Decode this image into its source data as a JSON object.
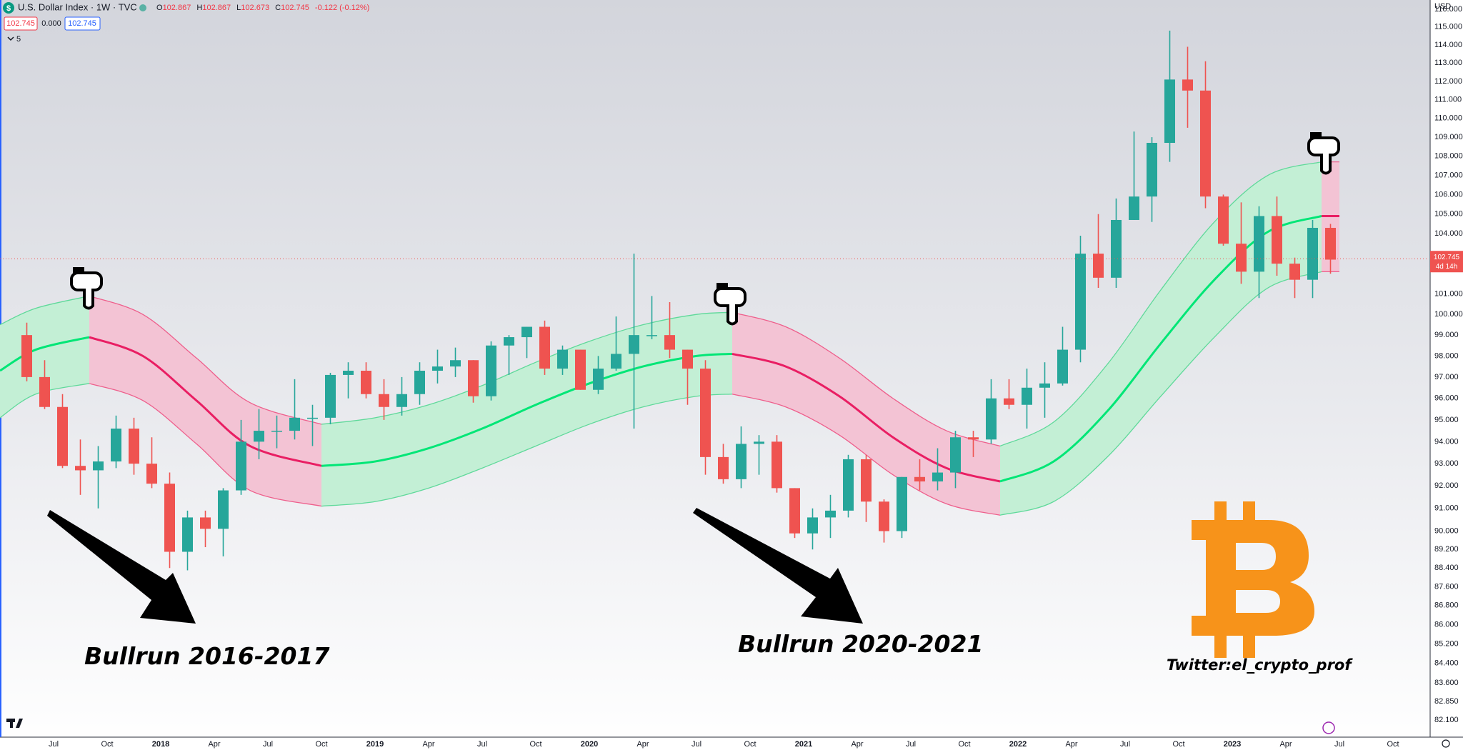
{
  "header": {
    "icon": "$",
    "symbol": "U.S. Dollar Index · 1W · TVC",
    "ohlc": [
      {
        "key": "O",
        "value": "102.867"
      },
      {
        "key": "H",
        "value": "102.867"
      },
      {
        "key": "L",
        "value": "102.673"
      },
      {
        "key": "C",
        "value": "102.745"
      }
    ],
    "change": "-0.122 (-0.12%)",
    "inputs": [
      "102.745",
      "0.000",
      "102.745"
    ],
    "indicators": "5",
    "currency": "USD"
  },
  "chart_data": {
    "type": "candlestick",
    "log_scale": true,
    "grid": false,
    "up_color": "#26a69a",
    "down_color": "#ef5350",
    "xlim": [
      "2017-04",
      "2023-12"
    ],
    "ylim": [
      81.42,
      116.52
    ],
    "x": [
      "2017-05",
      "2017-06",
      "2017-07",
      "2017-08",
      "2017-09",
      "2017-10",
      "2017-11",
      "2017-12",
      "2018-01",
      "2018-02",
      "2018-03",
      "2018-04",
      "2018-05",
      "2018-06",
      "2018-07",
      "2018-08",
      "2018-09",
      "2018-10",
      "2018-11",
      "2018-12",
      "2019-01",
      "2019-02",
      "2019-03",
      "2019-04",
      "2019-05",
      "2019-06",
      "2019-07",
      "2019-08",
      "2019-09",
      "2019-10",
      "2019-11",
      "2019-12",
      "2020-01",
      "2020-02",
      "2020-03",
      "2020-04",
      "2020-05",
      "2020-06",
      "2020-07",
      "2020-08",
      "2020-09",
      "2020-10",
      "2020-11",
      "2020-12",
      "2021-01",
      "2021-02",
      "2021-03",
      "2021-04",
      "2021-05",
      "2021-06",
      "2021-07",
      "2021-08",
      "2021-09",
      "2021-10",
      "2021-11",
      "2021-12",
      "2022-01",
      "2022-02",
      "2022-03",
      "2022-04",
      "2022-05",
      "2022-06",
      "2022-07",
      "2022-08",
      "2022-09",
      "2022-10",
      "2022-11",
      "2022-12",
      "2023-01",
      "2023-02",
      "2023-03",
      "2023-04",
      "2023-05",
      "2023-06"
    ],
    "open": [
      99.0,
      97.0,
      95.6,
      92.9,
      92.7,
      93.1,
      94.6,
      93.0,
      92.1,
      89.1,
      90.6,
      90.1,
      91.8,
      94.0,
      94.5,
      94.5,
      95.1,
      95.1,
      97.1,
      97.3,
      96.2,
      95.6,
      96.2,
      97.3,
      97.5,
      97.8,
      96.1,
      98.5,
      98.9,
      99.4,
      97.4,
      98.3,
      96.4,
      97.4,
      98.1,
      99.0,
      99.0,
      98.3,
      97.4,
      93.3,
      92.3,
      93.9,
      94.0,
      91.9,
      89.9,
      90.6,
      90.9,
      93.2,
      91.3,
      90.0,
      92.4,
      92.2,
      92.6,
      94.2,
      94.1,
      96.0,
      95.7,
      96.5,
      96.7,
      98.3,
      103.0,
      101.8,
      104.7,
      105.9,
      108.7,
      112.1,
      111.5,
      105.9,
      103.5,
      102.1,
      104.9,
      102.5,
      101.7,
      104.3
    ],
    "high": [
      99.6,
      97.8,
      96.2,
      94.1,
      93.8,
      95.2,
      95.1,
      94.2,
      92.6,
      90.9,
      90.9,
      91.9,
      95.0,
      95.5,
      95.2,
      96.9,
      95.7,
      97.2,
      97.7,
      97.7,
      96.9,
      97.0,
      97.7,
      98.3,
      98.4,
      97.8,
      98.7,
      99.0,
      99.4,
      99.7,
      98.5,
      98.3,
      98.0,
      99.9,
      103.0,
      100.9,
      100.6,
      98.3,
      97.8,
      93.9,
      94.7,
      94.3,
      94.3,
      91.9,
      91.0,
      91.6,
      93.4,
      93.4,
      91.4,
      92.4,
      93.2,
      93.7,
      94.5,
      94.5,
      96.9,
      96.9,
      97.4,
      97.7,
      99.4,
      103.9,
      105.0,
      105.8,
      109.3,
      109.0,
      114.8,
      113.9,
      113.1,
      106.0,
      105.6,
      105.4,
      105.9,
      102.8,
      104.7,
      104.5
    ],
    "low": [
      96.8,
      95.5,
      92.8,
      91.6,
      91.0,
      92.8,
      92.5,
      91.9,
      88.4,
      88.3,
      89.3,
      88.9,
      91.6,
      93.2,
      93.7,
      94.1,
      93.8,
      94.8,
      96.0,
      96.0,
      95.0,
      95.2,
      95.7,
      96.7,
      97.0,
      95.8,
      95.9,
      97.1,
      97.9,
      97.1,
      97.1,
      96.4,
      96.2,
      97.3,
      94.6,
      98.8,
      97.9,
      95.7,
      92.5,
      92.1,
      91.9,
      92.5,
      91.7,
      89.7,
      89.2,
      89.7,
      90.6,
      90.4,
      89.5,
      89.7,
      91.8,
      91.8,
      91.9,
      93.3,
      93.9,
      95.5,
      94.6,
      95.1,
      96.6,
      97.7,
      101.3,
      101.3,
      104.7,
      104.6,
      107.7,
      109.5,
      105.3,
      103.4,
      101.5,
      100.8,
      101.9,
      100.8,
      100.8,
      102.0
    ],
    "close": [
      97.0,
      95.6,
      92.9,
      92.7,
      93.1,
      94.6,
      93.0,
      92.1,
      89.1,
      90.6,
      90.1,
      91.8,
      94.0,
      94.5,
      94.5,
      95.1,
      95.1,
      97.1,
      97.3,
      96.2,
      95.6,
      96.2,
      97.3,
      97.5,
      97.8,
      96.1,
      98.5,
      98.9,
      99.4,
      97.4,
      98.3,
      96.4,
      97.4,
      98.1,
      99.0,
      99.0,
      98.3,
      97.4,
      93.3,
      92.3,
      93.9,
      94.0,
      91.9,
      89.9,
      90.6,
      90.9,
      93.2,
      91.3,
      90.0,
      92.4,
      92.2,
      92.6,
      94.2,
      94.1,
      96.0,
      95.7,
      96.5,
      96.7,
      98.3,
      103.0,
      101.8,
      104.7,
      105.9,
      108.7,
      112.1,
      111.5,
      105.9,
      103.5,
      102.1,
      104.9,
      102.5,
      101.7,
      104.3,
      102.7
    ],
    "bands": [
      {
        "color": "#00e676",
        "fill": "#c3efd5",
        "edge": "#5fd99a",
        "x": [
          "2017-04",
          "2017-06",
          "2017-09"
        ],
        "center": [
          97.3,
          98.3,
          98.9
        ],
        "upper": [
          99.5,
          100.3,
          100.9
        ],
        "lower": [
          95.1,
          96.2,
          96.7
        ]
      },
      {
        "color": "#e91e63",
        "fill": "#f3c3d4",
        "edge": "#ee5f8c",
        "x": [
          "2017-09",
          "2017-12",
          "2018-03",
          "2018-06",
          "2018-10"
        ],
        "center": [
          98.9,
          98.0,
          95.9,
          93.8,
          92.9
        ],
        "upper": [
          100.9,
          100.0,
          97.9,
          95.8,
          94.8
        ],
        "lower": [
          96.7,
          95.9,
          93.9,
          91.8,
          91.1
        ]
      },
      {
        "color": "#00e676",
        "fill": "#c3efd5",
        "edge": "#5fd99a",
        "x": [
          "2018-10",
          "2019-01",
          "2019-04",
          "2019-07",
          "2019-10",
          "2020-01",
          "2020-04",
          "2020-07",
          "2020-09"
        ],
        "center": [
          92.9,
          93.1,
          93.7,
          94.6,
          95.7,
          96.7,
          97.5,
          98.0,
          98.1
        ],
        "upper": [
          94.8,
          95.1,
          95.7,
          96.6,
          97.7,
          98.7,
          99.5,
          100.0,
          100.1
        ],
        "lower": [
          91.1,
          91.3,
          91.9,
          92.8,
          93.8,
          94.8,
          95.6,
          96.1,
          96.2
        ]
      },
      {
        "color": "#e91e63",
        "fill": "#f3c3d4",
        "edge": "#ee5f8c",
        "x": [
          "2020-09",
          "2020-12",
          "2021-03",
          "2021-06",
          "2021-09",
          "2021-12"
        ],
        "center": [
          98.1,
          97.5,
          96.1,
          94.2,
          92.8,
          92.2
        ],
        "upper": [
          100.1,
          99.4,
          97.9,
          96.0,
          94.5,
          93.8
        ],
        "lower": [
          96.2,
          95.6,
          94.3,
          92.5,
          91.2,
          90.7
        ]
      },
      {
        "color": "#00e676",
        "fill": "#c3efd5",
        "edge": "#5fd99a",
        "x": [
          "2021-12",
          "2022-03",
          "2022-06",
          "2022-09",
          "2022-12",
          "2023-03",
          "2023-06"
        ],
        "center": [
          92.2,
          93.1,
          95.4,
          98.6,
          101.7,
          104.1,
          104.9
        ],
        "upper": [
          93.8,
          94.9,
          97.6,
          101.2,
          104.6,
          107.0,
          107.7
        ],
        "lower": [
          90.7,
          91.3,
          93.3,
          96.1,
          98.9,
          101.3,
          102.1
        ]
      },
      {
        "color": "#e91e63",
        "fill": "#f3c3d4",
        "edge": "#ee5f8c",
        "x": [
          "2023-06",
          "2023-07"
        ],
        "center": [
          104.9,
          104.9
        ],
        "upper": [
          107.7,
          107.7
        ],
        "lower": [
          102.1,
          102.1
        ]
      }
    ],
    "yticks": [
      {
        "value": 82.1,
        "label": "82.100"
      },
      {
        "value": 82.85,
        "label": "82.850"
      },
      {
        "value": 83.6,
        "label": "83.600"
      },
      {
        "value": 84.4,
        "label": "84.400"
      },
      {
        "value": 85.2,
        "label": "85.200"
      },
      {
        "value": 86,
        "label": "86.000"
      },
      {
        "value": 86.8,
        "label": "86.800"
      },
      {
        "value": 87.6,
        "label": "87.600"
      },
      {
        "value": 88.4,
        "label": "88.400"
      },
      {
        "value": 89.2,
        "label": "89.200"
      },
      {
        "value": 90,
        "label": "90.000"
      },
      {
        "value": 91,
        "label": "91.000"
      },
      {
        "value": 92,
        "label": "92.000"
      },
      {
        "value": 93,
        "label": "93.000"
      },
      {
        "value": 94,
        "label": "94.000"
      },
      {
        "value": 95,
        "label": "95.000"
      },
      {
        "value": 96,
        "label": "96.000"
      },
      {
        "value": 97,
        "label": "97.000"
      },
      {
        "value": 98,
        "label": "98.000"
      },
      {
        "value": 99,
        "label": "99.000"
      },
      {
        "value": 100,
        "label": "100.000"
      },
      {
        "value": 101,
        "label": "101.000"
      },
      {
        "value": 104,
        "label": "104.000"
      },
      {
        "value": 105,
        "label": "105.000"
      },
      {
        "value": 106,
        "label": "106.000"
      },
      {
        "value": 107,
        "label": "107.000"
      },
      {
        "value": 108,
        "label": "108.000"
      },
      {
        "value": 109,
        "label": "109.000"
      },
      {
        "value": 110,
        "label": "110.000"
      },
      {
        "value": 111,
        "label": "111.000"
      },
      {
        "value": 112,
        "label": "112.000"
      },
      {
        "value": 113,
        "label": "113.000"
      },
      {
        "value": 114,
        "label": "114.000"
      },
      {
        "value": 115,
        "label": "115.000"
      },
      {
        "value": 116,
        "label": "116.000"
      }
    ],
    "xticks": [
      {
        "value": "2017-07",
        "label": "Jul"
      },
      {
        "value": "2017-10",
        "label": "Oct"
      },
      {
        "value": "2018-01",
        "label": "2018"
      },
      {
        "value": "2018-04",
        "label": "Apr"
      },
      {
        "value": "2018-07",
        "label": "Jul"
      },
      {
        "value": "2018-10",
        "label": "Oct"
      },
      {
        "value": "2019-01",
        "label": "2019"
      },
      {
        "value": "2019-04",
        "label": "Apr"
      },
      {
        "value": "2019-07",
        "label": "Jul"
      },
      {
        "value": "2019-10",
        "label": "Oct"
      },
      {
        "value": "2020-01",
        "label": "2020"
      },
      {
        "value": "2020-04",
        "label": "Apr"
      },
      {
        "value": "2020-07",
        "label": "Jul"
      },
      {
        "value": "2020-10",
        "label": "Oct"
      },
      {
        "value": "2021-01",
        "label": "2021"
      },
      {
        "value": "2021-04",
        "label": "Apr"
      },
      {
        "value": "2021-07",
        "label": "Jul"
      },
      {
        "value": "2021-10",
        "label": "Oct"
      },
      {
        "value": "2022-01",
        "label": "2022"
      },
      {
        "value": "2022-04",
        "label": "Apr"
      },
      {
        "value": "2022-07",
        "label": "Jul"
      },
      {
        "value": "2022-10",
        "label": "Oct"
      },
      {
        "value": "2023-01",
        "label": "2023"
      },
      {
        "value": "2023-04",
        "label": "Apr"
      },
      {
        "value": "2023-07",
        "label": "Jul"
      },
      {
        "value": "2023-10",
        "label": "Oct"
      }
    ],
    "last_price": 102.745,
    "countdown": "4d 14h",
    "annotations": [
      "Bullrun 2016-2017",
      "Bullrun 2020-2021",
      "Twitter:el_crypto_prof"
    ]
  }
}
